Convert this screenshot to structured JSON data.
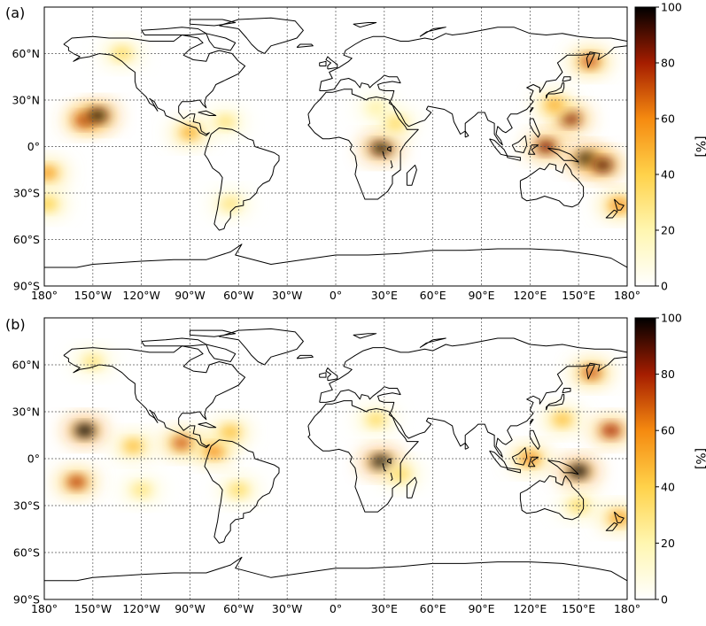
{
  "figure": {
    "colormap": [
      "#ffffff",
      "#fff6b0",
      "#ffd24a",
      "#f58a10",
      "#a51d00",
      "#000000"
    ],
    "coast_color": "#000000",
    "panels": [
      {
        "label": "(a)",
        "colorbar": {
          "ticks": [
            "0",
            "20",
            "40",
            "60",
            "80",
            "100"
          ],
          "label": "[%]"
        },
        "hotspots": [
          {
            "lon": -155,
            "lat": 17,
            "value": 80
          },
          {
            "lon": -147,
            "lat": 20,
            "value": 95
          },
          {
            "lon": -90,
            "lat": 9,
            "value": 50
          },
          {
            "lon": -68,
            "lat": 16,
            "value": 30
          },
          {
            "lon": -132,
            "lat": 60,
            "value": 35
          },
          {
            "lon": -178,
            "lat": -17,
            "value": 55
          },
          {
            "lon": -178,
            "lat": -37,
            "value": 40
          },
          {
            "lon": -65,
            "lat": -37,
            "value": 30
          },
          {
            "lon": 25,
            "lat": 25,
            "value": 22
          },
          {
            "lon": 28,
            "lat": -1,
            "value": 95
          },
          {
            "lon": 37,
            "lat": 15,
            "value": 35
          },
          {
            "lon": 130,
            "lat": 0,
            "value": 85
          },
          {
            "lon": 145,
            "lat": 18,
            "value": 85
          },
          {
            "lon": 155,
            "lat": -8,
            "value": 100
          },
          {
            "lon": 165,
            "lat": -12,
            "value": 90
          },
          {
            "lon": 135,
            "lat": 27,
            "value": 50
          },
          {
            "lon": 157,
            "lat": 55,
            "value": 70
          },
          {
            "lon": 175,
            "lat": -38,
            "value": 60
          }
        ]
      },
      {
        "label": "(b)",
        "colorbar": {
          "ticks": [
            "0",
            "20",
            "40",
            "60",
            "80",
            "100"
          ],
          "label": "[%]"
        },
        "hotspots": [
          {
            "lon": -155,
            "lat": 18,
            "value": 100
          },
          {
            "lon": -160,
            "lat": -15,
            "value": 75
          },
          {
            "lon": -125,
            "lat": 8,
            "value": 45
          },
          {
            "lon": -95,
            "lat": 10,
            "value": 70
          },
          {
            "lon": -75,
            "lat": 5,
            "value": 60
          },
          {
            "lon": -65,
            "lat": 17,
            "value": 45
          },
          {
            "lon": -120,
            "lat": -20,
            "value": 30
          },
          {
            "lon": -60,
            "lat": -20,
            "value": 35
          },
          {
            "lon": -150,
            "lat": 62,
            "value": 30
          },
          {
            "lon": 28,
            "lat": -2,
            "value": 100
          },
          {
            "lon": 25,
            "lat": 25,
            "value": 35
          },
          {
            "lon": 40,
            "lat": -10,
            "value": 35
          },
          {
            "lon": 120,
            "lat": 0,
            "value": 60
          },
          {
            "lon": 150,
            "lat": -8,
            "value": 100
          },
          {
            "lon": 170,
            "lat": 18,
            "value": 80
          },
          {
            "lon": 140,
            "lat": 25,
            "value": 45
          },
          {
            "lon": 158,
            "lat": 55,
            "value": 70
          },
          {
            "lon": 150,
            "lat": -30,
            "value": 35
          },
          {
            "lon": 175,
            "lat": -38,
            "value": 55
          }
        ]
      }
    ],
    "lat_ticks": [
      "60°N",
      "30°N",
      "0°",
      "30°S",
      "60°S",
      "90°S"
    ],
    "lon_ticks": [
      "180°",
      "150°W",
      "120°W",
      "90°W",
      "60°W",
      "30°W",
      "0°",
      "30°E",
      "60°E",
      "90°E",
      "120°E",
      "150°E",
      "180°"
    ]
  }
}
